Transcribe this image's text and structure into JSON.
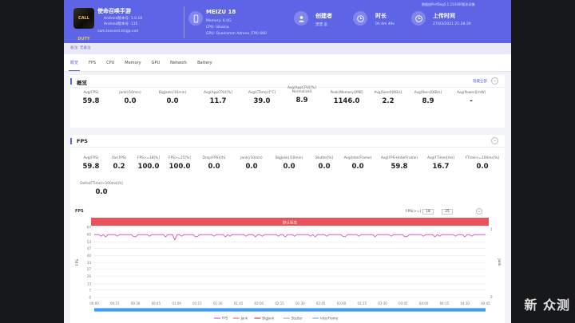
{
  "header": {
    "game": {
      "icon_text": "CALL DUTY",
      "title": "使命召唤手游",
      "android_version": "Android版本号: 1.0.18",
      "android_code": "Android版本号: 135",
      "package": "com.tencent.tmgp.cod"
    },
    "device": {
      "name": "MEIZU 18",
      "memory": "Memory: 6.0G",
      "cpu": "CPU: lahaina",
      "gpu": "GPU: Qualcomm Adreno (TM) 660"
    },
    "creator": {
      "label": "创建者",
      "value": "漂漂 说"
    },
    "duration": {
      "label": "时长",
      "value": "0h 4m 49s"
    },
    "upload": {
      "label": "上传时间",
      "value": "27/03/2021 21:28:39"
    },
    "perfdog_note": "数据由PerfDog5.1.210300版本采集",
    "remark": "备注: 无备注",
    "icon_clock": "clock-icon"
  },
  "tabs": [
    "概览",
    "FPS",
    "CPU",
    "Memory",
    "GPU",
    "Network",
    "Battery"
  ],
  "overview": {
    "title": "概览",
    "toggle_label": "隐藏全部",
    "metrics": [
      {
        "label": "Avg(FPS)",
        "value": "59.8"
      },
      {
        "label": "Jank(/10min)",
        "value": "0.0"
      },
      {
        "label": "BigJank(/10min)",
        "value": "0.0"
      },
      {
        "label": "Avg(AppCPU)[%]",
        "value": "11.7"
      },
      {
        "label": "Avg(CTemp)[°C]",
        "value": "39.0"
      },
      {
        "label": "Avg(AppCPU)[%] Normalized",
        "value": "8.9"
      },
      {
        "label": "Peak(Memory)[MB]",
        "value": "1146.0"
      },
      {
        "label": "Avg(Send)[KB/s]",
        "value": "2.2"
      },
      {
        "label": "Avg(Recv)[KB/s]",
        "value": "8.9"
      },
      {
        "label": "Avg(Power)[mW]",
        "value": "-"
      }
    ]
  },
  "fps_section": {
    "title": "FPS",
    "metrics": [
      {
        "label": "Avg(FPS)",
        "value": "59.8"
      },
      {
        "label": "Var(FPS)",
        "value": "0.2"
      },
      {
        "label": "FPS>=18[%]",
        "value": "100.0"
      },
      {
        "label": "FPS>=25[%]",
        "value": "100.0"
      },
      {
        "label": "Drop(FPS)[/h]",
        "value": "0.0"
      },
      {
        "label": "Jank(/10min)",
        "value": "0.0"
      },
      {
        "label": "BigJank(/10min)",
        "value": "0.0"
      },
      {
        "label": "Stutter[%]",
        "value": "0.0"
      },
      {
        "label": "Avg(InterFrame)",
        "value": "0.0"
      },
      {
        "label": "Avg(FPS+InterFrame)",
        "value": "59.8"
      },
      {
        "label": "Avg(FTime)[ms]",
        "value": "16.7"
      },
      {
        "label": "FTime>=100ms[%]",
        "value": "0.0"
      },
      {
        "label": "Delta(FTime)>100ms[/h]",
        "value": "0.0"
      }
    ]
  },
  "chart_data": {
    "type": "line",
    "title": "FPS",
    "label_left": "FPS",
    "label_right": "Jank",
    "fps_filter_label": "FPS(>=)",
    "fps_filter_values": [
      "18",
      "25"
    ],
    "band_label": "默认标签",
    "y_ticks": [
      67,
      60,
      53,
      47,
      40,
      33,
      27,
      20,
      13,
      7,
      0
    ],
    "y_right_ticks": [
      "1",
      "0"
    ],
    "x_ticks": [
      "00:00",
      "00:15",
      "00:30",
      "00:45",
      "01:00",
      "01:15",
      "01:30",
      "01:45",
      "02:00",
      "02:15",
      "02:30",
      "02:45",
      "03:00",
      "03:15",
      "03:30",
      "03:45",
      "04:00",
      "04:15",
      "04:30",
      "04:45"
    ],
    "ylim": [
      0,
      67
    ],
    "series": [
      {
        "name": "FPS",
        "color": "#d83cc8",
        "base": 60
      },
      {
        "name": "Jank",
        "color": "#e75b5b"
      },
      {
        "name": "BigJank",
        "color": "#c02222"
      },
      {
        "name": "Stutter",
        "color": "#9aa0a6"
      },
      {
        "name": "InterFrame",
        "color": "#4aa3ff"
      }
    ]
  },
  "watermark": "新 众测"
}
